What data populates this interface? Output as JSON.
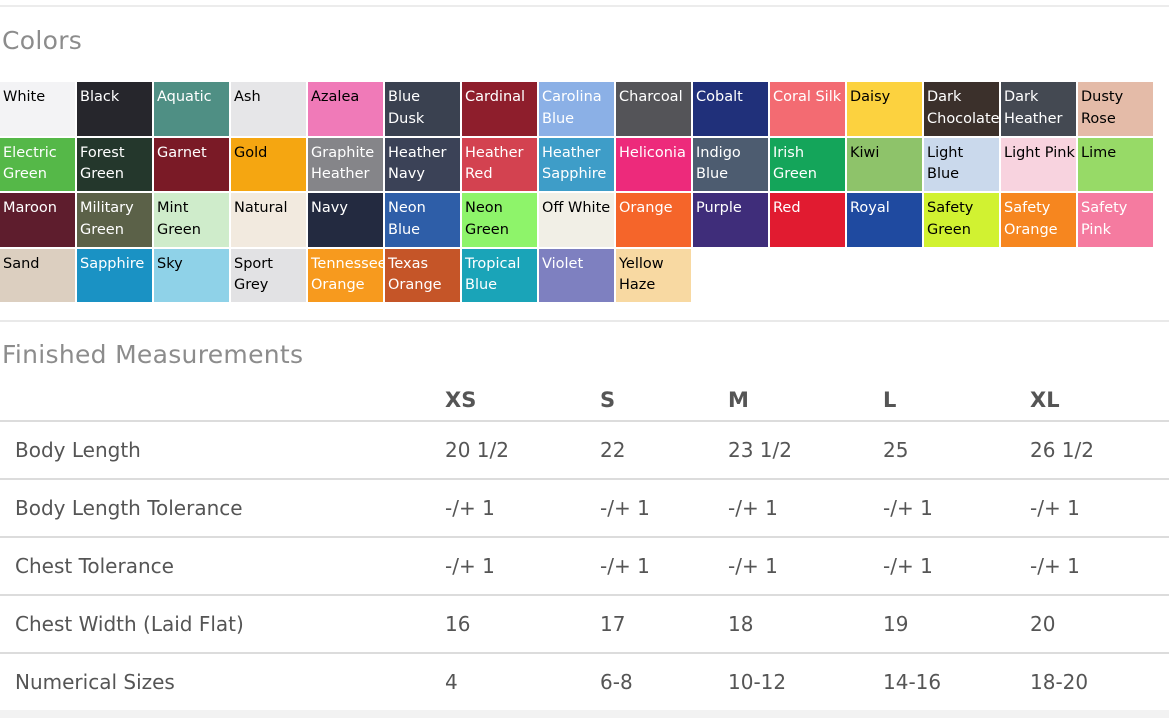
{
  "colors_section": {
    "title": "Colors",
    "swatches": [
      {
        "label": "White",
        "bg": "#f3f3f5",
        "text": "#000000"
      },
      {
        "label": "Black",
        "bg": "#26262c",
        "text": "#ffffff"
      },
      {
        "label": "Aquatic",
        "bg": "#4f8f84",
        "text": "#ffffff"
      },
      {
        "label": "Ash",
        "bg": "#e6e6e8",
        "text": "#000000"
      },
      {
        "label": "Azalea",
        "bg": "#f07ab8",
        "text": "#000000"
      },
      {
        "label": "Blue\nDusk",
        "bg": "#3a4150",
        "text": "#ffffff"
      },
      {
        "label": "Cardinal",
        "bg": "#8e1e2c",
        "text": "#ffffff"
      },
      {
        "label": "Carolina\nBlue",
        "bg": "#8bb0e6",
        "text": "#ffffff"
      },
      {
        "label": "Charcoal",
        "bg": "#545458",
        "text": "#ffffff"
      },
      {
        "label": "Cobalt",
        "bg": "#20307a",
        "text": "#ffffff"
      },
      {
        "label": "Coral Silk",
        "bg": "#f36b72",
        "text": "#ffffff"
      },
      {
        "label": "Daisy",
        "bg": "#fcd23f",
        "text": "#000000"
      },
      {
        "label": "Dark\nChocolate",
        "bg": "#3b302b",
        "text": "#ffffff"
      },
      {
        "label": "Dark\nHeather",
        "bg": "#444952",
        "text": "#ffffff"
      },
      {
        "label": "Dusty\nRose",
        "bg": "#e4bba8",
        "text": "#000000"
      },
      {
        "label": "Electric\nGreen",
        "bg": "#55b848",
        "text": "#ffffff"
      },
      {
        "label": "Forest\nGreen",
        "bg": "#24372c",
        "text": "#ffffff"
      },
      {
        "label": "Garnet",
        "bg": "#7a1a26",
        "text": "#ffffff"
      },
      {
        "label": "Gold",
        "bg": "#f5a611",
        "text": "#000000"
      },
      {
        "label": "Graphite\nHeather",
        "bg": "#858589",
        "text": "#ffffff"
      },
      {
        "label": "Heather\nNavy",
        "bg": "#3b4257",
        "text": "#ffffff"
      },
      {
        "label": "Heather\nRed",
        "bg": "#d34250",
        "text": "#ffffff"
      },
      {
        "label": "Heather\nSapphire",
        "bg": "#3e9dc8",
        "text": "#ffffff"
      },
      {
        "label": "Heliconia",
        "bg": "#ed2a7b",
        "text": "#ffffff"
      },
      {
        "label": "Indigo\nBlue",
        "bg": "#4d5c70",
        "text": "#ffffff"
      },
      {
        "label": "Irish\nGreen",
        "bg": "#14a55a",
        "text": "#ffffff"
      },
      {
        "label": "Kiwi",
        "bg": "#8ec36a",
        "text": "#000000"
      },
      {
        "label": "Light Blue",
        "bg": "#cad9ec",
        "text": "#000000"
      },
      {
        "label": "Light Pink",
        "bg": "#f8d3df",
        "text": "#000000"
      },
      {
        "label": "Lime",
        "bg": "#97da67",
        "text": "#000000"
      },
      {
        "label": "Maroon",
        "bg": "#5e1d2d",
        "text": "#ffffff"
      },
      {
        "label": "Military\nGreen",
        "bg": "#5b6148",
        "text": "#ffffff"
      },
      {
        "label": "Mint\nGreen",
        "bg": "#cfeccb",
        "text": "#000000"
      },
      {
        "label": "Natural",
        "bg": "#f2eadf",
        "text": "#000000"
      },
      {
        "label": "Navy",
        "bg": "#232a40",
        "text": "#ffffff"
      },
      {
        "label": "Neon\nBlue",
        "bg": "#2e5ea8",
        "text": "#ffffff"
      },
      {
        "label": "Neon\nGreen",
        "bg": "#8ef46a",
        "text": "#000000"
      },
      {
        "label": "Off White",
        "bg": "#f1efe6",
        "text": "#000000"
      },
      {
        "label": "Orange",
        "bg": "#f5652a",
        "text": "#ffffff"
      },
      {
        "label": "Purple",
        "bg": "#3f2d7a",
        "text": "#ffffff"
      },
      {
        "label": "Red",
        "bg": "#e11b30",
        "text": "#ffffff"
      },
      {
        "label": "Royal",
        "bg": "#1f4aa0",
        "text": "#ffffff"
      },
      {
        "label": "Safety\nGreen",
        "bg": "#d1f231",
        "text": "#000000"
      },
      {
        "label": "Safety\nOrange",
        "bg": "#f6861f",
        "text": "#ffffff"
      },
      {
        "label": "Safety\nPink",
        "bg": "#f57ba0",
        "text": "#ffffff"
      },
      {
        "label": "Sand",
        "bg": "#dccfc0",
        "text": "#000000"
      },
      {
        "label": "Sapphire",
        "bg": "#1a92c4",
        "text": "#ffffff"
      },
      {
        "label": "Sky",
        "bg": "#8fd2e8",
        "text": "#000000"
      },
      {
        "label": "Sport\nGrey",
        "bg": "#e2e2e4",
        "text": "#000000"
      },
      {
        "label": "Tennessee\nOrange",
        "bg": "#f79a1e",
        "text": "#ffffff"
      },
      {
        "label": "Texas\nOrange",
        "bg": "#c55528",
        "text": "#ffffff"
      },
      {
        "label": "Tropical\nBlue",
        "bg": "#1aa4b8",
        "text": "#ffffff"
      },
      {
        "label": "Violet",
        "bg": "#7e80c0",
        "text": "#ffffff"
      },
      {
        "label": "Yellow\nHaze",
        "bg": "#f8d9a2",
        "text": "#000000"
      }
    ]
  },
  "measurements_section": {
    "title": "Finished Measurements",
    "sizes": [
      "XS",
      "S",
      "M",
      "L",
      "XL"
    ],
    "rows": [
      {
        "label": "Body Length",
        "values": [
          "20 1/2",
          "22",
          "23 1/2",
          "25",
          "26 1/2"
        ]
      },
      {
        "label": "Body Length Tolerance",
        "values": [
          "-/+ 1",
          "-/+ 1",
          "-/+ 1",
          "-/+ 1",
          "-/+ 1"
        ]
      },
      {
        "label": "Chest Tolerance",
        "values": [
          "-/+ 1",
          "-/+ 1",
          "-/+ 1",
          "-/+ 1",
          "-/+ 1"
        ]
      },
      {
        "label": "Chest Width (Laid Flat)",
        "values": [
          "16",
          "17",
          "18",
          "19",
          "20"
        ]
      },
      {
        "label": "Numerical Sizes",
        "values": [
          "4",
          "6-8",
          "10-12",
          "14-16",
          "18-20"
        ]
      }
    ]
  }
}
